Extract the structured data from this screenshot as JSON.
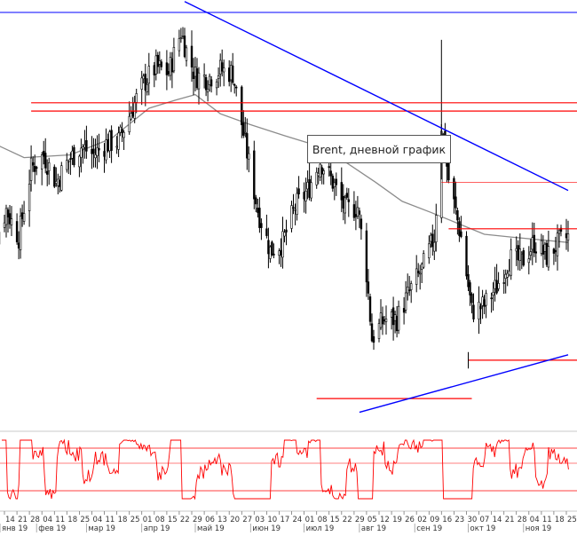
{
  "chart_data": {
    "type": "candlestick",
    "title": "Brent, дневной график",
    "price_axis": {
      "min": 59.6,
      "max": 74.7,
      "labels_visible": false
    },
    "colors": {
      "candles": "#000000",
      "moving_average": "#8c8c8c",
      "support_resistance": "#ff0000",
      "trendlines": "#0000ff",
      "oscillator": "#ff0000"
    },
    "x_tick_labels": [
      "14",
      "21",
      "28",
      "04",
      "11",
      "18",
      "25",
      "04",
      "11",
      "18",
      "25",
      "01",
      "08",
      "15",
      "22",
      "29",
      "06",
      "13",
      "20",
      "27",
      "03",
      "10",
      "17",
      "24",
      "01",
      "08",
      "15",
      "22",
      "29",
      "05",
      "12",
      "19",
      "26",
      "02",
      "09",
      "16",
      "23",
      "30",
      "07",
      "14",
      "21",
      "28",
      "04",
      "11",
      "18",
      "25"
    ],
    "month_labels": [
      "янв 19",
      "фев 19",
      "мар 19",
      "апр 19",
      "май 19",
      "июн 19",
      "июл 19",
      "авг 19",
      "сен 19",
      "окт 19",
      "ноя 19"
    ],
    "horizontal_levels": [
      71.4,
      71.1,
      68.5,
      66.8,
      62.0,
      60.6
    ],
    "trendlines": [
      {
        "from": [
          "2019-04-25",
          75.1
        ],
        "to": [
          "2019-11-26",
          68.2
        ]
      },
      {
        "from": [
          "2019-08-01",
          60.1
        ],
        "to": [
          "2019-11-26",
          62.2
        ]
      }
    ],
    "moving_average": [
      [
        "2019-01-02",
        70.1
      ],
      [
        "2019-01-25",
        69.4
      ],
      [
        "2019-02-20",
        69.5
      ],
      [
        "2019-03-15",
        70.1
      ],
      [
        "2019-04-05",
        71.2
      ],
      [
        "2019-04-20",
        71.5
      ],
      [
        "2019-05-01",
        71.7
      ],
      [
        "2019-05-15",
        71.0
      ],
      [
        "2019-06-01",
        70.6
      ],
      [
        "2019-06-20",
        70.2
      ],
      [
        "2019-07-05",
        69.9
      ],
      [
        "2019-07-25",
        69.2
      ],
      [
        "2019-08-10",
        68.5
      ],
      [
        "2019-08-25",
        67.8
      ],
      [
        "2019-09-10",
        67.4
      ],
      [
        "2019-09-25",
        67.0
      ],
      [
        "2019-10-10",
        66.6
      ],
      [
        "2019-10-25",
        66.5
      ],
      [
        "2019-11-26",
        66.3
      ]
    ],
    "closes": [
      [
        "2019-01-07",
        66.0
      ],
      [
        "2019-01-15",
        67.5
      ],
      [
        "2019-01-22",
        66.5
      ],
      [
        "2019-01-29",
        69.0
      ],
      [
        "2019-02-05",
        69.5
      ],
      [
        "2019-02-12",
        68.5
      ],
      [
        "2019-02-19",
        69.3
      ],
      [
        "2019-02-26",
        69.8
      ],
      [
        "2019-03-05",
        69.5
      ],
      [
        "2019-03-12",
        69.9
      ],
      [
        "2019-03-19",
        70.0
      ],
      [
        "2019-03-26",
        71.1
      ],
      [
        "2019-04-02",
        72.1
      ],
      [
        "2019-04-09",
        72.7
      ],
      [
        "2019-04-16",
        72.5
      ],
      [
        "2019-04-23",
        74.0
      ],
      [
        "2019-04-26",
        73.3
      ],
      [
        "2019-05-01",
        72.4
      ],
      [
        "2019-05-08",
        72.3
      ],
      [
        "2019-05-15",
        72.6
      ],
      [
        "2019-05-22",
        72.5
      ],
      [
        "2019-05-29",
        69.9
      ],
      [
        "2019-06-05",
        67.5
      ],
      [
        "2019-06-12",
        66.0
      ],
      [
        "2019-06-19",
        66.3
      ],
      [
        "2019-06-26",
        67.6
      ],
      [
        "2019-07-03",
        68.2
      ],
      [
        "2019-07-10",
        69.3
      ],
      [
        "2019-07-17",
        68.5
      ],
      [
        "2019-07-24",
        67.5
      ],
      [
        "2019-07-31",
        67.6
      ],
      [
        "2019-08-05",
        65.2
      ],
      [
        "2019-08-08",
        62.8
      ],
      [
        "2019-08-15",
        63.5
      ],
      [
        "2019-08-22",
        63.5
      ],
      [
        "2019-08-29",
        64.5
      ],
      [
        "2019-09-05",
        65.3
      ],
      [
        "2019-09-12",
        66.5
      ],
      [
        "2019-09-16",
        70.6
      ],
      [
        "2019-09-20",
        68.6
      ],
      [
        "2019-09-27",
        66.5
      ],
      [
        "2019-10-03",
        63.8
      ],
      [
        "2019-10-10",
        64.0
      ],
      [
        "2019-10-17",
        64.7
      ],
      [
        "2019-10-24",
        65.7
      ],
      [
        "2019-10-31",
        65.6
      ],
      [
        "2019-11-07",
        66.3
      ],
      [
        "2019-11-14",
        65.8
      ],
      [
        "2019-11-21",
        66.3
      ],
      [
        "2019-11-26",
        66.5
      ]
    ]
  }
}
